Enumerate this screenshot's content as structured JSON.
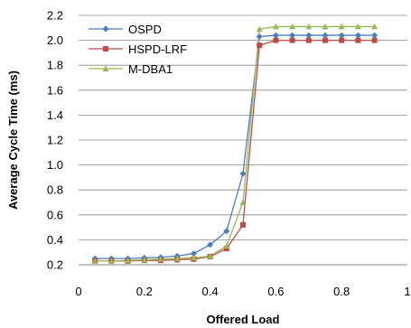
{
  "chart_data": {
    "type": "line",
    "title": "",
    "xlabel": "Offered Load",
    "ylabel": "Average Cycle Time (ms)",
    "xlim": [
      0,
      1
    ],
    "ylim": [
      0.2,
      2.2
    ],
    "xticks": [
      0,
      0.2,
      0.4,
      0.6,
      0.8,
      1
    ],
    "xtick_labels": [
      "0",
      "0.2",
      "0.4",
      "0.6",
      "0.8",
      "1"
    ],
    "yticks": [
      0.2,
      0.4,
      0.6,
      0.8,
      1.0,
      1.2,
      1.4,
      1.6,
      1.8,
      2.0,
      2.2
    ],
    "ytick_labels": [
      "0.2",
      "0.4",
      "0.6",
      "0.8",
      "1.0",
      "1.2",
      "1.4",
      "1.6",
      "1.8",
      "2.0",
      "2.2"
    ],
    "grid": "horizontal",
    "legend_position": "top-left",
    "x": [
      0.05,
      0.1,
      0.15,
      0.2,
      0.25,
      0.3,
      0.35,
      0.4,
      0.45,
      0.5,
      0.55,
      0.6,
      0.65,
      0.7,
      0.75,
      0.8,
      0.85,
      0.9
    ],
    "series": [
      {
        "name": "OSPD",
        "color": "#4a7ebb",
        "marker": "diamond",
        "values": [
          0.25,
          0.25,
          0.25,
          0.255,
          0.26,
          0.27,
          0.29,
          0.36,
          0.47,
          0.93,
          2.03,
          2.04,
          2.04,
          2.04,
          2.04,
          2.04,
          2.04,
          2.04
        ]
      },
      {
        "name": "HSPD-LRF",
        "color": "#be4b48",
        "marker": "square",
        "values": [
          0.23,
          0.23,
          0.23,
          0.235,
          0.235,
          0.24,
          0.245,
          0.265,
          0.33,
          0.52,
          1.96,
          2.0,
          2.0,
          2.0,
          2.0,
          2.0,
          2.0,
          2.0
        ]
      },
      {
        "name": "M-DBA1",
        "color": "#98b954",
        "marker": "triangle",
        "values": [
          0.23,
          0.23,
          0.235,
          0.24,
          0.245,
          0.25,
          0.255,
          0.27,
          0.35,
          0.7,
          2.09,
          2.11,
          2.11,
          2.11,
          2.11,
          2.11,
          2.11,
          2.11
        ]
      }
    ]
  }
}
